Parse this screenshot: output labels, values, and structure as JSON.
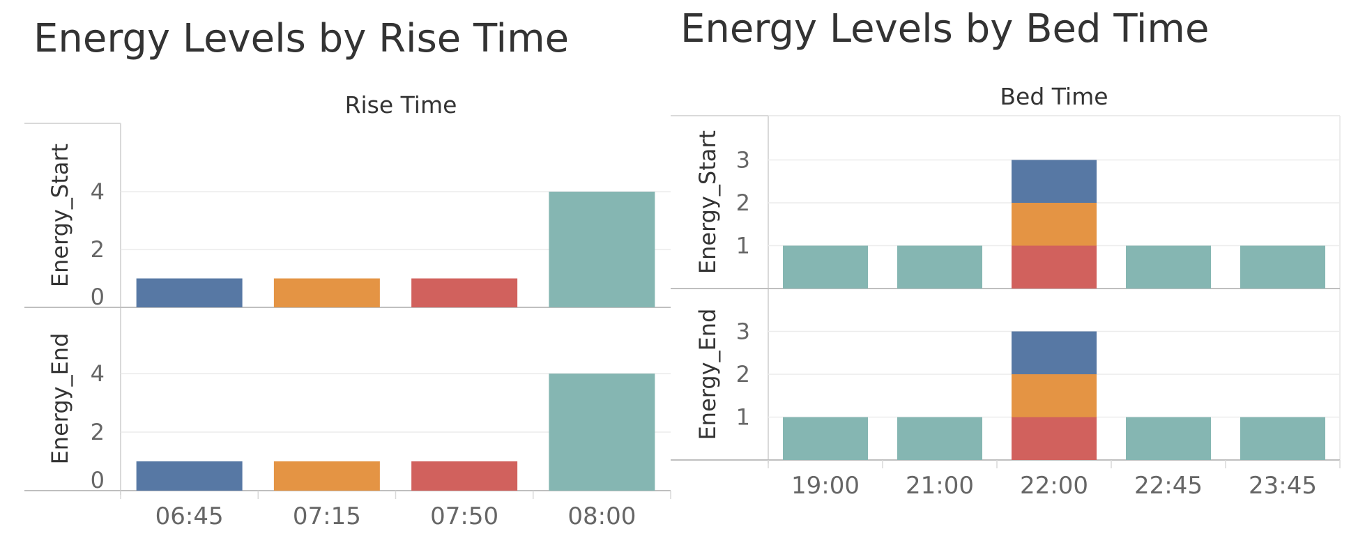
{
  "chart_data": [
    {
      "type": "bar",
      "title": "Energy Levels by Rise Time",
      "column_header": "Rise Time",
      "categories": [
        "06:45",
        "07:15",
        "07:50",
        "08:00"
      ],
      "panels": [
        {
          "ylabel": "Energy_Start",
          "ylim": [
            0,
            5
          ],
          "yticks": [
            0,
            2,
            4
          ],
          "bars": [
            {
              "category": "06:45",
              "segments": [
                {
                  "value": 1,
                  "color": "#5778a4"
                }
              ]
            },
            {
              "category": "07:15",
              "segments": [
                {
                  "value": 1,
                  "color": "#e49444"
                }
              ]
            },
            {
              "category": "07:50",
              "segments": [
                {
                  "value": 1,
                  "color": "#d1615d"
                }
              ]
            },
            {
              "category": "08:00",
              "segments": [
                {
                  "value": 4,
                  "color": "#85b6b2"
                }
              ]
            }
          ]
        },
        {
          "ylabel": "Energy_End",
          "ylim": [
            0,
            5
          ],
          "yticks": [
            0,
            2,
            4
          ],
          "bars": [
            {
              "category": "06:45",
              "segments": [
                {
                  "value": 1,
                  "color": "#5778a4"
                }
              ]
            },
            {
              "category": "07:15",
              "segments": [
                {
                  "value": 1,
                  "color": "#e49444"
                }
              ]
            },
            {
              "category": "07:50",
              "segments": [
                {
                  "value": 1,
                  "color": "#d1615d"
                }
              ]
            },
            {
              "category": "08:00",
              "segments": [
                {
                  "value": 4,
                  "color": "#85b6b2"
                }
              ]
            }
          ]
        }
      ],
      "grid": true,
      "legend": "none"
    },
    {
      "type": "bar",
      "stacked": true,
      "title": "Energy Levels by Bed Time",
      "column_header": "Bed Time",
      "categories": [
        "19:00",
        "21:00",
        "22:00",
        "22:45",
        "23:45"
      ],
      "panels": [
        {
          "ylabel": "Energy_Start",
          "ylim": [
            0,
            4
          ],
          "yticks": [
            1,
            2,
            3
          ],
          "bars": [
            {
              "category": "19:00",
              "segments": [
                {
                  "value": 1,
                  "color": "#85b6b2"
                }
              ]
            },
            {
              "category": "21:00",
              "segments": [
                {
                  "value": 1,
                  "color": "#85b6b2"
                }
              ]
            },
            {
              "category": "22:00",
              "segments": [
                {
                  "value": 1,
                  "color": "#d1615d"
                },
                {
                  "value": 1,
                  "color": "#e49444"
                },
                {
                  "value": 1,
                  "color": "#5778a4"
                }
              ]
            },
            {
              "category": "22:45",
              "segments": [
                {
                  "value": 1,
                  "color": "#85b6b2"
                }
              ]
            },
            {
              "category": "23:45",
              "segments": [
                {
                  "value": 1,
                  "color": "#85b6b2"
                }
              ]
            }
          ]
        },
        {
          "ylabel": "Energy_End",
          "ylim": [
            0,
            4
          ],
          "yticks": [
            1,
            2,
            3
          ],
          "bars": [
            {
              "category": "19:00",
              "segments": [
                {
                  "value": 1,
                  "color": "#85b6b2"
                }
              ]
            },
            {
              "category": "21:00",
              "segments": [
                {
                  "value": 1,
                  "color": "#85b6b2"
                }
              ]
            },
            {
              "category": "22:00",
              "segments": [
                {
                  "value": 1,
                  "color": "#d1615d"
                },
                {
                  "value": 1,
                  "color": "#e49444"
                },
                {
                  "value": 1,
                  "color": "#5778a4"
                }
              ]
            },
            {
              "category": "22:45",
              "segments": [
                {
                  "value": 1,
                  "color": "#85b6b2"
                }
              ]
            },
            {
              "category": "23:45",
              "segments": [
                {
                  "value": 1,
                  "color": "#85b6b2"
                }
              ]
            }
          ]
        }
      ],
      "grid": true,
      "legend": "none"
    }
  ]
}
